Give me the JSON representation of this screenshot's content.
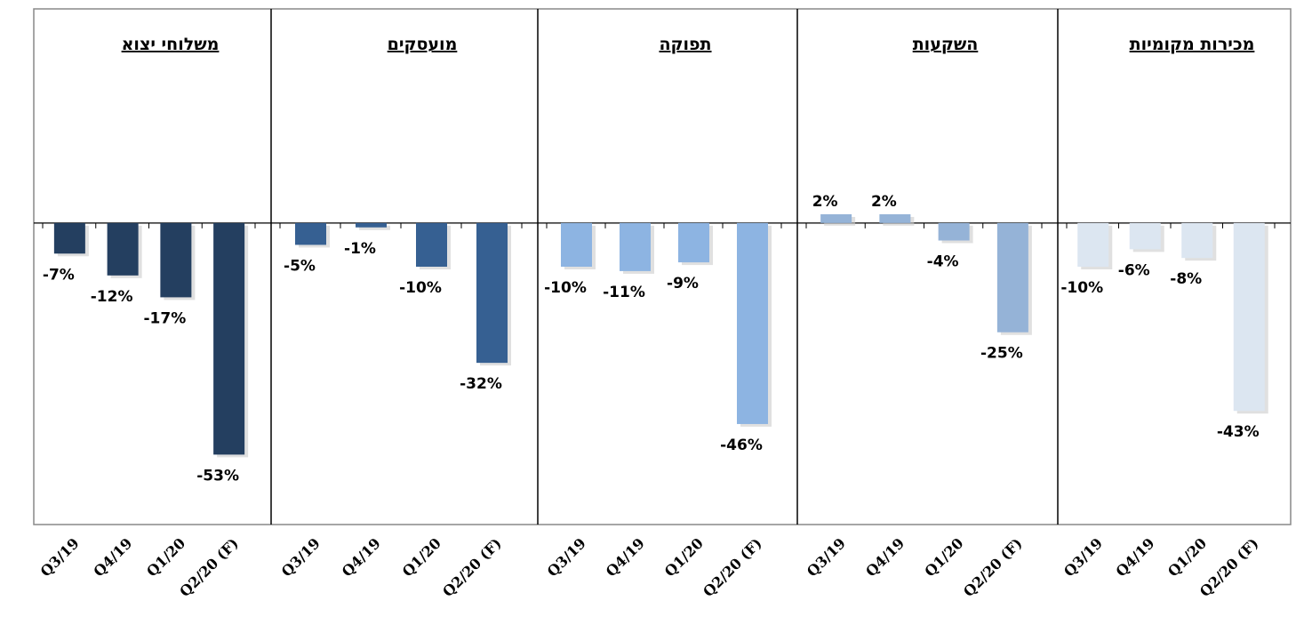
{
  "chart_data": [
    {
      "type": "bar",
      "title": "משלוחי יצוא",
      "categories": [
        "Q3/19",
        "Q4/19",
        "Q1/20",
        "Q2/20 (F)"
      ],
      "values": [
        -7,
        -12,
        -17,
        -53
      ],
      "value_labels": [
        "-7%",
        "-12%",
        "-17%",
        "-53%"
      ],
      "color": "#243f60",
      "ylim": [
        -69,
        49
      ]
    },
    {
      "type": "bar",
      "title": "מועסקים",
      "categories": [
        "Q3/19",
        "Q4/19",
        "Q1/20",
        "Q2/20 (F)"
      ],
      "values": [
        -5,
        -1,
        -10,
        -32
      ],
      "value_labels": [
        "-5%",
        "-1%",
        "-10%",
        "-32%"
      ],
      "color": "#366092",
      "ylim": [
        -69,
        49
      ]
    },
    {
      "type": "bar",
      "title": "תפוקה",
      "categories": [
        "Q3/19",
        "Q4/19",
        "Q1/20",
        "Q2/20 (F)"
      ],
      "values": [
        -10,
        -11,
        -9,
        -46
      ],
      "value_labels": [
        "-10%",
        "-11%",
        "-9%",
        "-46%"
      ],
      "color": "#8db4e2",
      "ylim": [
        -69,
        49
      ]
    },
    {
      "type": "bar",
      "title": "השקעות",
      "categories": [
        "Q3/19",
        "Q4/19",
        "Q1/20",
        "Q2/20 (F)"
      ],
      "values": [
        2,
        2,
        -4,
        -25
      ],
      "value_labels": [
        "2%",
        "2%",
        "-4%",
        "-25%"
      ],
      "color": "#95b3d7",
      "ylim": [
        -69,
        49
      ]
    },
    {
      "type": "bar",
      "title": "מכירות מקומיות",
      "categories": [
        "Q3/19",
        "Q4/19",
        "Q1/20",
        "Q2/20 (F)"
      ],
      "values": [
        -10,
        -6,
        -8,
        -43
      ],
      "value_labels": [
        "-10%",
        "-6%",
        "-8%",
        "-43%"
      ],
      "color": "#dce6f1",
      "ylim": [
        -69,
        49
      ]
    }
  ]
}
